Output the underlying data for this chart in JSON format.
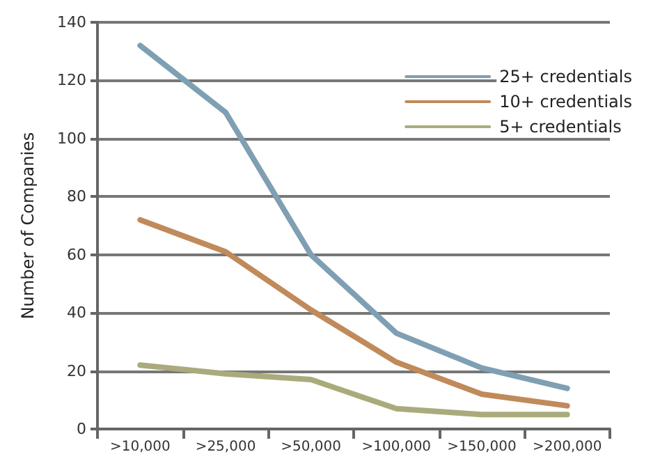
{
  "chart_data": {
    "type": "line",
    "ylabel": "Number of Companies",
    "categories": [
      ">10,000",
      ">25,000",
      ">50,000",
      ">100,000",
      ">150,000",
      ">200,000"
    ],
    "series": [
      {
        "name": "25+ credentials",
        "color": "#7f9fb3",
        "values": [
          132,
          109,
          60,
          33,
          21,
          14
        ]
      },
      {
        "name": "10+ credentials",
        "color": "#c08a5a",
        "values": [
          72,
          61,
          41,
          23,
          12,
          8
        ]
      },
      {
        "name": "5+ credentials",
        "color": "#aaaa7c",
        "values": [
          22,
          19,
          17,
          7,
          5,
          5
        ]
      }
    ],
    "ylim": [
      0,
      140
    ],
    "yticks": [
      0,
      20,
      40,
      60,
      80,
      100,
      120,
      140
    ],
    "grid": "y",
    "legend": "top right",
    "marker": "none",
    "line_style": "solid"
  }
}
